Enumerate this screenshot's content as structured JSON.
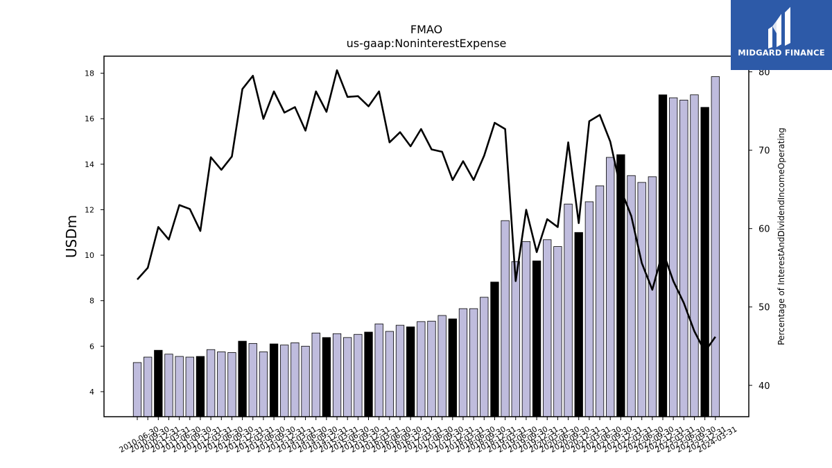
{
  "chart_data": {
    "type": "bar+line",
    "title": "FMAO",
    "subtitle": "us-gaap:NoninterestExpense",
    "ylabel_left": "USDm",
    "ylabel_right": "Percentage of InterestAndDividendIncomeOperating",
    "ylim_left": [
      2.9,
      18.75
    ],
    "ylim_right": [
      36,
      82
    ],
    "yticks_left": [
      4,
      6,
      8,
      10,
      12,
      14,
      16,
      18
    ],
    "yticks_right": [
      40,
      50,
      60,
      70,
      80
    ],
    "categories": [
      "2010-06-30",
      "2010-09-30",
      "2010-12-31",
      "2011-03-31",
      "2011-06-30",
      "2011-09-30",
      "2011-12-31",
      "2012-03-31",
      "2012-06-30",
      "2012-09-30",
      "2012-12-31",
      "2013-03-31",
      "2013-06-30",
      "2013-09-30",
      "2013-12-31",
      "2014-03-31",
      "2014-06-30",
      "2014-09-30",
      "2014-12-31",
      "2015-03-31",
      "2015-06-30",
      "2015-09-30",
      "2015-12-31",
      "2016-03-31",
      "2016-06-30",
      "2016-09-30",
      "2016-12-31",
      "2017-03-31",
      "2017-06-30",
      "2017-09-30",
      "2017-12-31",
      "2018-03-31",
      "2018-06-30",
      "2018-09-30",
      "2018-12-31",
      "2019-03-31",
      "2019-06-30",
      "2019-09-30",
      "2019-12-31",
      "2020-03-31",
      "2020-06-30",
      "2020-09-30",
      "2020-12-31",
      "2021-03-31",
      "2021-06-30",
      "2021-09-30",
      "2021-12-31",
      "2022-03-31",
      "2022-06-30",
      "2022-09-30",
      "2022-12-31",
      "2023-03-31",
      "2023-06-30",
      "2023-09-30",
      "2023-12-31",
      "2024-03-31"
    ],
    "series": [
      {
        "type": "bar",
        "axis": "left",
        "values": [
          5.28,
          5.52,
          5.82,
          5.65,
          5.55,
          5.52,
          5.55,
          5.85,
          5.75,
          5.72,
          6.22,
          6.12,
          5.75,
          6.1,
          6.05,
          6.15,
          6.0,
          6.58,
          6.38,
          6.55,
          6.38,
          6.52,
          6.62,
          6.98,
          6.65,
          6.92,
          6.85,
          7.08,
          7.1,
          7.35,
          7.2,
          7.65,
          7.65,
          8.15,
          8.82,
          11.52,
          9.72,
          10.6,
          9.75,
          10.68,
          10.38,
          12.25,
          11.0,
          12.35,
          13.05,
          14.3,
          14.42,
          13.5,
          13.2,
          13.45,
          17.05,
          16.92,
          16.82,
          17.05,
          16.5,
          17.85
        ],
        "highlight_color": "#000000",
        "base_color": "#bfbcdd",
        "highlight_indices": [
          2,
          6,
          10,
          13,
          18,
          22,
          26,
          30,
          34,
          38,
          42,
          46,
          50,
          54
        ]
      },
      {
        "type": "line",
        "axis": "right",
        "color": "#000000",
        "values": [
          53.5,
          55.0,
          60.2,
          58.6,
          63.0,
          62.5,
          59.7,
          69.1,
          67.5,
          69.2,
          77.8,
          79.5,
          74.0,
          77.5,
          74.8,
          75.5,
          72.5,
          77.5,
          74.9,
          80.2,
          76.8,
          76.9,
          75.6,
          77.5,
          71.0,
          72.3,
          70.5,
          72.7,
          70.1,
          69.8,
          66.2,
          68.6,
          66.2,
          69.3,
          73.5,
          72.7,
          53.3,
          62.4,
          57.0,
          61.2,
          60.2,
          71.0,
          60.7,
          73.7,
          74.5,
          71.1,
          65.0,
          61.6,
          55.6,
          52.2,
          57.1,
          53.3,
          50.5,
          46.9,
          44.3,
          46.2
        ]
      }
    ]
  },
  "logo": {
    "text": "MIDGARD FINANCE",
    "color": "#2d5aa8"
  }
}
